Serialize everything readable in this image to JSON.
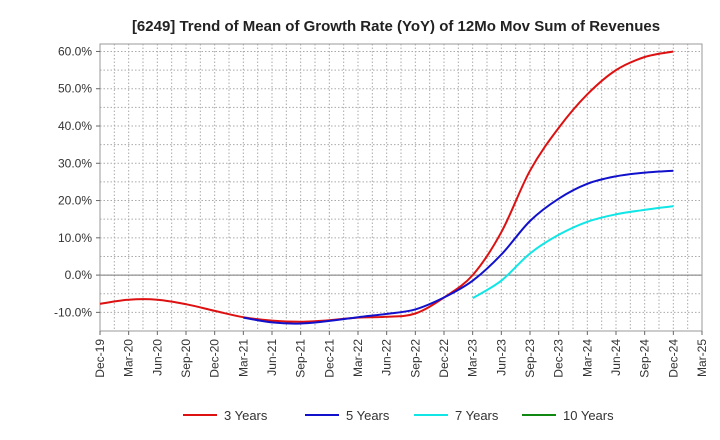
{
  "chart_data": {
    "type": "line",
    "title": "[6249]  Trend of Mean of Growth Rate (YoY) of 12Mo Mov Sum of Revenues",
    "xlabel": "",
    "ylabel": "",
    "ylim": [
      -15,
      62
    ],
    "y_ticks": [
      -10,
      0,
      10,
      20,
      30,
      40,
      50,
      60
    ],
    "y_tick_labels": [
      "-10.0%",
      "0.0%",
      "10.0%",
      "20.0%",
      "30.0%",
      "40.0%",
      "50.0%",
      "60.0%"
    ],
    "x_ticks": [
      "Dec-19",
      "Mar-20",
      "Jun-20",
      "Sep-20",
      "Dec-20",
      "Mar-21",
      "Jun-21",
      "Sep-21",
      "Dec-21",
      "Mar-22",
      "Jun-22",
      "Sep-22",
      "Dec-22",
      "Mar-23",
      "Jun-23",
      "Sep-23",
      "Dec-23",
      "Mar-24",
      "Jun-24",
      "Sep-24",
      "Dec-24",
      "Mar-25"
    ],
    "grid": true,
    "legend_position": "bottom",
    "series": [
      {
        "name": "3 Years",
        "color": "#dd1111",
        "points": [
          [
            0,
            -7.7
          ],
          [
            1,
            -6.6
          ],
          [
            2,
            -6.6
          ],
          [
            3,
            -7.8
          ],
          [
            4,
            -9.6
          ],
          [
            5,
            -11.3
          ],
          [
            6,
            -12.2
          ],
          [
            7,
            -12.5
          ],
          [
            8,
            -12.1
          ],
          [
            9,
            -11.4
          ],
          [
            10,
            -11.2
          ],
          [
            11,
            -10.3
          ],
          [
            12,
            -6.0
          ],
          [
            13,
            0.0
          ],
          [
            14,
            11.5
          ],
          [
            15,
            28.0
          ],
          [
            16,
            39.5
          ],
          [
            17,
            48.5
          ],
          [
            18,
            55.0
          ],
          [
            19,
            58.5
          ],
          [
            20,
            60.0
          ]
        ]
      },
      {
        "name": "5 Years",
        "color": "#1111cc",
        "points": [
          [
            5,
            -11.4
          ],
          [
            6,
            -12.7
          ],
          [
            7,
            -13.0
          ],
          [
            8,
            -12.3
          ],
          [
            9,
            -11.3
          ],
          [
            10,
            -10.4
          ],
          [
            11,
            -9.2
          ],
          [
            12,
            -6.0
          ],
          [
            13,
            -1.5
          ],
          [
            14,
            5.5
          ],
          [
            15,
            14.5
          ],
          [
            16,
            20.5
          ],
          [
            17,
            24.5
          ],
          [
            18,
            26.5
          ],
          [
            19,
            27.5
          ],
          [
            20,
            28.0
          ]
        ]
      },
      {
        "name": "7 Years",
        "color": "#11e5e5",
        "points": [
          [
            13,
            -6.2
          ],
          [
            14,
            -1.5
          ],
          [
            15,
            5.8
          ],
          [
            16,
            10.8
          ],
          [
            17,
            14.3
          ],
          [
            18,
            16.3
          ],
          [
            19,
            17.5
          ],
          [
            20,
            18.5
          ]
        ]
      },
      {
        "name": "10 Years",
        "color": "#118811",
        "points": []
      }
    ]
  }
}
